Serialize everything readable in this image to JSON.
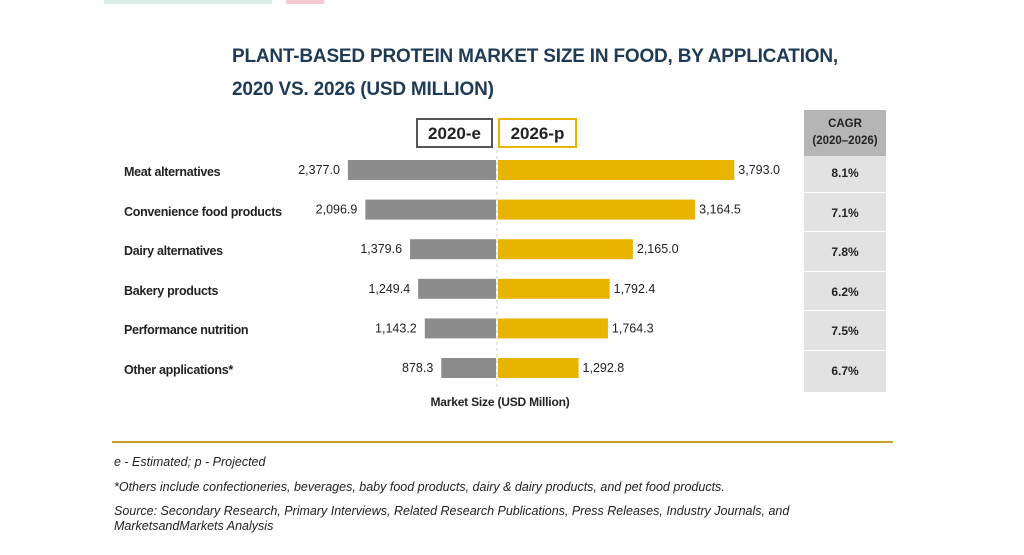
{
  "title_line1": "PLANT-BASED PROTEIN MARKET SIZE IN FOOD, BY APPLICATION,",
  "title_line2": "2020 VS. 2026 (USD MILLION)",
  "cagr_header_line1": "CAGR",
  "cagr_header_line2": "(2020–2026)",
  "colors": {
    "series_2020": "#8c8c8c",
    "series_2026": "#e8b400",
    "rule": "#c9a227"
  },
  "chart_data": {
    "type": "bar",
    "title": "PLANT-BASED PROTEIN MARKET SIZE IN FOOD, BY APPLICATION, 2020 VS. 2026 (USD MILLION)",
    "xlabel": "Market Size (USD Million)",
    "ylabel": "",
    "legend": "top-center",
    "categories": [
      "Meat alternatives",
      "Convenience food products",
      "Dairy alternatives",
      "Bakery products",
      "Performance nutrition",
      "Other applications*"
    ],
    "series": [
      {
        "name": "2020-e",
        "values": [
          2377.0,
          2096.9,
          1379.6,
          1249.4,
          1143.2,
          878.3
        ],
        "labels": [
          "2,377.0",
          "2,096.9",
          "1,379.6",
          "1,249.4",
          "1,143.2",
          "878.3"
        ]
      },
      {
        "name": "2026-p",
        "values": [
          3793.0,
          3164.5,
          2165.0,
          1792.4,
          1764.3,
          1292.8
        ],
        "labels": [
          "3,793.0",
          "3,164.5",
          "2,165.0",
          "1,792.4",
          "1,764.3",
          "1,292.8"
        ]
      }
    ],
    "cagr": [
      "8.1%",
      "7.1%",
      "7.8%",
      "6.2%",
      "7.5%",
      "6.7%"
    ]
  },
  "notes": {
    "legend_note": "e - Estimated; p - Projected",
    "others_note": "*Others include confectioneries, beverages, baby food products, dairy & dairy products, and pet food products.",
    "source_line1": "Source: Secondary Research, Primary Interviews, Related Research Publications, Press Releases, Industry Journals, and",
    "source_line2": "MarketsandMarkets Analysis"
  }
}
